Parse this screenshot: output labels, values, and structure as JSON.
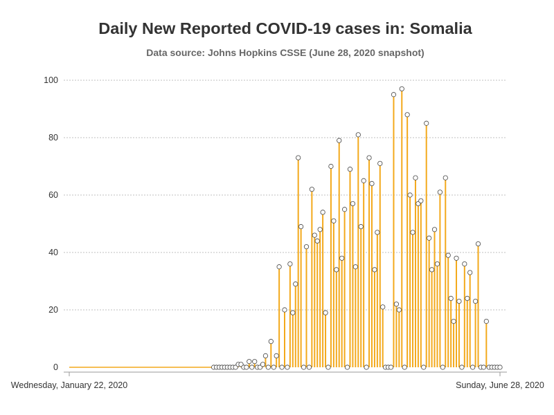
{
  "title": "Daily New Reported COVID-19 cases in: Somalia",
  "subtitle": "Data source: Johns Hopkins CSSE (June 28, 2020 snapshot)",
  "colors": {
    "stem": "#f3a91b",
    "marker_fill": "#ffffff",
    "marker_stroke": "#444444",
    "grid": "#aaaaaa",
    "axis": "#999999",
    "text": "#333333"
  },
  "chart_data": {
    "type": "scatter",
    "title": "Daily New Reported COVID-19 cases in: Somalia",
    "subtitle": "Data source: Johns Hopkins CSSE (June 28, 2020 snapshot)",
    "xlabel": "",
    "ylabel": "",
    "x_start": "2020-01-22",
    "x_end": "2020-06-28",
    "x_tick_labels": [
      "Wednesday, January 22, 2020",
      "Sunday, June 28, 2020"
    ],
    "ylim": [
      0,
      100
    ],
    "yticks": [
      0,
      20,
      40,
      60,
      80,
      100
    ],
    "grid": true,
    "legend": "none",
    "series": [
      {
        "name": "",
        "x": [
          "2020-03-15",
          "2020-03-16",
          "2020-03-17",
          "2020-03-18",
          "2020-03-19",
          "2020-03-20",
          "2020-03-21",
          "2020-03-22",
          "2020-03-23",
          "2020-03-24",
          "2020-03-25",
          "2020-03-26",
          "2020-03-27",
          "2020-03-28",
          "2020-03-29",
          "2020-03-30",
          "2020-03-31",
          "2020-04-01",
          "2020-04-02",
          "2020-04-03",
          "2020-04-04",
          "2020-04-05",
          "2020-04-06",
          "2020-04-07",
          "2020-04-08",
          "2020-04-09",
          "2020-04-10",
          "2020-04-11",
          "2020-04-12",
          "2020-04-13",
          "2020-04-14",
          "2020-04-15",
          "2020-04-16",
          "2020-04-17",
          "2020-04-18",
          "2020-04-19",
          "2020-04-20",
          "2020-04-21",
          "2020-04-22",
          "2020-04-23",
          "2020-04-24",
          "2020-04-25",
          "2020-04-26",
          "2020-04-27",
          "2020-04-28",
          "2020-04-29",
          "2020-04-30",
          "2020-05-01",
          "2020-05-02",
          "2020-05-03",
          "2020-05-04",
          "2020-05-05",
          "2020-05-06",
          "2020-05-07",
          "2020-05-08",
          "2020-05-09",
          "2020-05-10",
          "2020-05-11",
          "2020-05-12",
          "2020-05-13",
          "2020-05-14",
          "2020-05-15",
          "2020-05-16",
          "2020-05-17",
          "2020-05-18",
          "2020-05-19",
          "2020-05-20",
          "2020-05-21",
          "2020-05-22",
          "2020-05-23",
          "2020-05-24",
          "2020-05-25",
          "2020-05-26",
          "2020-05-27",
          "2020-05-28",
          "2020-05-29",
          "2020-05-30",
          "2020-05-31",
          "2020-06-01",
          "2020-06-02",
          "2020-06-03",
          "2020-06-04",
          "2020-06-05",
          "2020-06-06",
          "2020-06-07",
          "2020-06-08",
          "2020-06-09",
          "2020-06-10",
          "2020-06-11",
          "2020-06-12",
          "2020-06-13",
          "2020-06-14",
          "2020-06-15",
          "2020-06-16",
          "2020-06-17",
          "2020-06-18",
          "2020-06-19",
          "2020-06-20",
          "2020-06-21",
          "2020-06-22",
          "2020-06-23",
          "2020-06-24",
          "2020-06-25",
          "2020-06-26",
          "2020-06-27",
          "2020-06-28"
        ],
        "y": [
          0,
          0,
          0,
          0,
          0,
          0,
          0,
          0,
          0,
          1,
          1,
          0,
          0,
          2,
          0,
          2,
          0,
          0,
          1,
          4,
          0,
          9,
          0,
          4,
          35,
          0,
          20,
          0,
          36,
          19,
          29,
          73,
          49,
          0,
          42,
          0,
          62,
          46,
          44,
          48,
          54,
          19,
          0,
          70,
          51,
          34,
          79,
          38,
          55,
          0,
          69,
          57,
          35,
          81,
          49,
          65,
          0,
          73,
          64,
          34,
          47,
          71,
          21,
          0,
          0,
          0,
          95,
          22,
          20,
          97,
          0,
          88,
          60,
          47,
          66,
          57,
          58,
          0,
          85,
          45,
          34,
          48,
          36,
          61,
          0,
          66,
          39,
          24,
          16,
          38,
          23,
          0,
          36,
          24,
          33,
          0,
          23,
          43,
          0,
          0,
          16,
          0,
          0,
          0,
          0,
          0
        ]
      }
    ]
  }
}
